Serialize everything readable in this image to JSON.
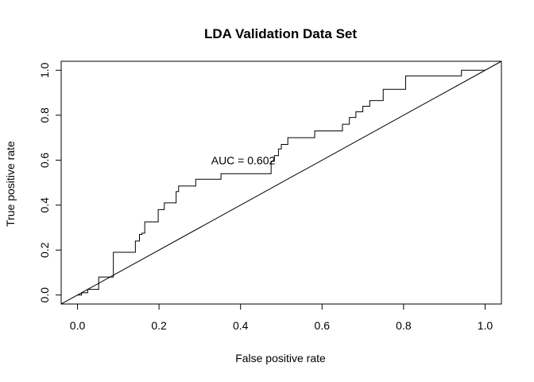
{
  "chart_data": {
    "type": "line",
    "title": "LDA Validation Data Set",
    "xlabel": "False positive rate",
    "ylabel": "True positive rate",
    "xlim": [
      -0.04,
      1.04
    ],
    "ylim": [
      -0.04,
      1.04
    ],
    "x_ticks": [
      "0.0",
      "0.2",
      "0.4",
      "0.6",
      "0.8",
      "1.0"
    ],
    "y_ticks": [
      "0.0",
      "0.2",
      "0.4",
      "0.6",
      "0.8",
      "1.0"
    ],
    "grid": false,
    "annotation": {
      "text": "AUC = 0.602",
      "x": 0.485,
      "y": 0.6
    },
    "series": [
      {
        "values_x": [
          0,
          0.01,
          0.01,
          0.025,
          0.025,
          0.052,
          0.052,
          0.088,
          0.088,
          0.142,
          0.142,
          0.152,
          0.152,
          0.158,
          0.158,
          0.165,
          0.165,
          0.198,
          0.198,
          0.213,
          0.213,
          0.242,
          0.242,
          0.248,
          0.248,
          0.29,
          0.29,
          0.352,
          0.352,
          0.475,
          0.475,
          0.483,
          0.483,
          0.493,
          0.493,
          0.5,
          0.5,
          0.516,
          0.516,
          0.582,
          0.582,
          0.65,
          0.65,
          0.667,
          0.667,
          0.683,
          0.683,
          0.7,
          0.7,
          0.717,
          0.717,
          0.75,
          0.75,
          0.805,
          0.805,
          0.942,
          0.942,
          0.97,
          0.97,
          1.0
        ],
        "values_y": [
          0,
          0,
          0.01,
          0.01,
          0.025,
          0.025,
          0.08,
          0.08,
          0.19,
          0.19,
          0.24,
          0.24,
          0.27,
          0.27,
          0.275,
          0.275,
          0.325,
          0.325,
          0.38,
          0.38,
          0.41,
          0.41,
          0.46,
          0.46,
          0.485,
          0.485,
          0.515,
          0.515,
          0.54,
          0.54,
          0.595,
          0.595,
          0.62,
          0.62,
          0.65,
          0.65,
          0.67,
          0.67,
          0.7,
          0.7,
          0.73,
          0.73,
          0.76,
          0.76,
          0.79,
          0.79,
          0.815,
          0.815,
          0.84,
          0.84,
          0.865,
          0.865,
          0.915,
          0.915,
          0.975,
          0.975,
          1.0,
          1.0,
          1.0,
          1.0
        ]
      }
    ],
    "reference_line": {
      "x": [
        -0.04,
        1.04
      ],
      "y": [
        -0.04,
        1.04
      ]
    }
  }
}
